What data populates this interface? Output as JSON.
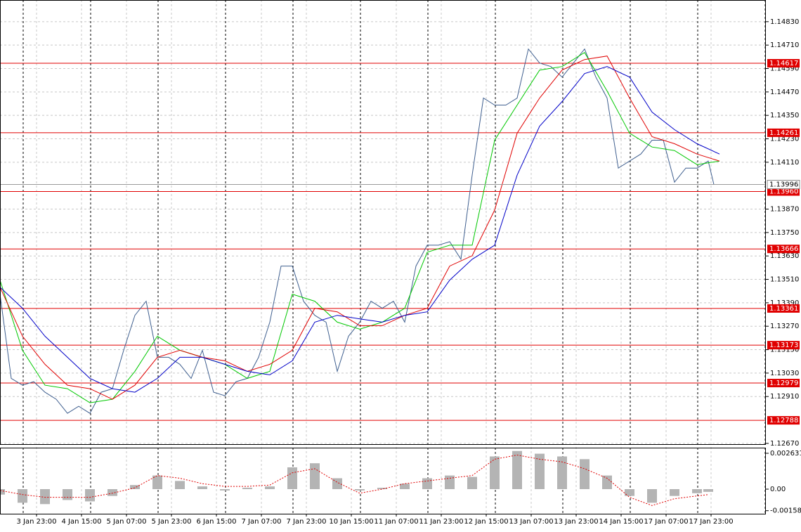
{
  "chart_data": [
    {
      "type": "line",
      "xlim": [
        0,
        272.5
      ],
      "ylim": [
        1.12666,
        1.14941
      ],
      "grid": true,
      "xticks": [
        {
          "value": 13,
          "label": "3 Jan 23:00"
        },
        {
          "value": 29,
          "label": "4 Jan 15:00"
        },
        {
          "value": 45,
          "label": "5 Jan 07:00"
        },
        {
          "value": 61,
          "label": "5 Jan 23:00"
        },
        {
          "value": 77,
          "label": "6 Jan 15:00"
        },
        {
          "value": 93,
          "label": "7 Jan 07:00"
        },
        {
          "value": 109,
          "label": "7 Jan 23:00"
        },
        {
          "value": 125,
          "label": "10 Jan 15:00"
        },
        {
          "value": 141,
          "label": "11 Jan 07:00"
        },
        {
          "value": 157,
          "label": "11 Jan 23:00"
        },
        {
          "value": 173,
          "label": "12 Jan 15:00"
        },
        {
          "value": 189,
          "label": "13 Jan 07:00"
        },
        {
          "value": 205,
          "label": "13 Jan 23:00"
        },
        {
          "value": 221,
          "label": "14 Jan 15:00"
        },
        {
          "value": 237,
          "label": "17 Jan 07:00"
        },
        {
          "value": 253,
          "label": "17 Jan 23:00"
        }
      ],
      "yticks": [
        {
          "value": 1.1483,
          "label": "1.14830"
        },
        {
          "value": 1.1471,
          "label": "1.14710"
        },
        {
          "value": 1.1459,
          "label": "1.14590"
        },
        {
          "value": 1.1447,
          "label": "1.14470"
        },
        {
          "value": 1.1435,
          "label": "1.14350"
        },
        {
          "value": 1.1423,
          "label": "1.14230"
        },
        {
          "value": 1.1411,
          "label": "1.14110"
        },
        {
          "value": 1.1387,
          "label": "1.13870"
        },
        {
          "value": 1.1375,
          "label": "1.13750"
        },
        {
          "value": 1.1363,
          "label": "1.13630"
        },
        {
          "value": 1.1351,
          "label": "1.13510"
        },
        {
          "value": 1.1339,
          "label": "1.13390"
        },
        {
          "value": 1.1327,
          "label": "1.13270"
        },
        {
          "value": 1.1315,
          "label": "1.13150"
        },
        {
          "value": 1.1303,
          "label": "1.13030"
        },
        {
          "value": 1.1291,
          "label": "1.12910"
        },
        {
          "value": 1.1267,
          "label": "1.12670"
        }
      ],
      "levels": [
        1.14617,
        1.14261,
        {
          "value": 1.1396,
          "label": "1.13960"
        },
        1.13666,
        1.13361,
        1.13173,
        1.12979,
        1.12788
      ],
      "level_color": "#e00000",
      "last_price": 1.13996,
      "series": [
        {
          "color": "#3f5f8f",
          "x": [
            0,
            4,
            8,
            12,
            16,
            20,
            24,
            28,
            32,
            36,
            40,
            44,
            48,
            52,
            56,
            60,
            64,
            68,
            72,
            76,
            80,
            84,
            88,
            92,
            96,
            100,
            104,
            108,
            112,
            116,
            120,
            124,
            128,
            132,
            136,
            140,
            144,
            148,
            152,
            156,
            160,
            164,
            168,
            172,
            176,
            180,
            184,
            188,
            192,
            196,
            200,
            204,
            208,
            212,
            216,
            220,
            224,
            228,
            232,
            236,
            240,
            244,
            248,
            252,
            254
          ],
          "values": [
            1.13434,
            1.13003,
            1.12968,
            1.12986,
            1.12932,
            1.12896,
            1.12824,
            1.1286,
            1.12824,
            1.12932,
            1.1295,
            1.13147,
            1.13326,
            1.13398,
            1.13111,
            1.13111,
            1.13075,
            1.13003,
            1.13147,
            1.12932,
            1.12914,
            1.12986,
            1.13003,
            1.13111,
            1.13291,
            1.13578,
            1.13578,
            1.13398,
            1.13326,
            1.13291,
            1.13039,
            1.13219,
            1.13291,
            1.13398,
            1.13362,
            1.13398,
            1.13291,
            1.13578,
            1.13685,
            1.13685,
            1.13703,
            1.13613,
            1.14044,
            1.14439,
            1.14403,
            1.14403,
            1.14439,
            1.1469,
            1.14618,
            1.146,
            1.14546,
            1.14618,
            1.1469,
            1.14546,
            1.14439,
            1.1408,
            1.14116,
            1.14152,
            1.14223,
            1.14223,
            1.14008,
            1.1408,
            1.1408,
            1.14116,
            1.13996
          ]
        },
        {
          "color": "#00c800",
          "x": [
            0,
            8,
            16,
            24,
            32,
            40,
            48,
            56,
            64,
            72,
            80,
            88,
            96,
            104,
            112,
            120,
            128,
            136,
            144,
            152,
            160,
            168,
            176,
            184,
            192,
            200,
            208,
            216,
            224,
            232,
            240,
            248,
            256
          ],
          "values": [
            1.13506,
            1.13147,
            1.12968,
            1.1295,
            1.12878,
            1.12896,
            1.13039,
            1.13219,
            1.13147,
            1.13111,
            1.13075,
            1.13003,
            1.13039,
            1.13434,
            1.13398,
            1.13291,
            1.13255,
            1.13291,
            1.13362,
            1.13649,
            1.13685,
            1.13685,
            1.14223,
            1.14403,
            1.14582,
            1.146,
            1.14672,
            1.14475,
            1.14259,
            1.14188,
            1.1417,
            1.14098,
            1.14116
          ]
        },
        {
          "color": "#e00000",
          "x": [
            0,
            8,
            16,
            24,
            32,
            40,
            48,
            56,
            64,
            72,
            80,
            88,
            96,
            104,
            112,
            120,
            128,
            136,
            144,
            152,
            160,
            168,
            176,
            184,
            192,
            200,
            208,
            216,
            224,
            232,
            240,
            248,
            256
          ],
          "values": [
            1.1347,
            1.13219,
            1.13075,
            1.12968,
            1.1295,
            1.12896,
            1.12968,
            1.13111,
            1.13147,
            1.13111,
            1.13093,
            1.13039,
            1.13075,
            1.13147,
            1.13362,
            1.13344,
            1.13273,
            1.13273,
            1.13326,
            1.13362,
            1.13578,
            1.13631,
            1.13865,
            1.14259,
            1.14439,
            1.14582,
            1.14636,
            1.14654,
            1.14439,
            1.14241,
            1.14205,
            1.14152,
            1.14116
          ]
        },
        {
          "color": "#0000c8",
          "x": [
            0,
            8,
            16,
            24,
            32,
            40,
            48,
            56,
            64,
            72,
            80,
            88,
            96,
            104,
            112,
            120,
            128,
            136,
            144,
            152,
            160,
            168,
            176,
            184,
            192,
            200,
            208,
            216,
            224,
            232,
            240,
            248,
            256
          ],
          "values": [
            1.1347,
            1.13362,
            1.13219,
            1.13111,
            1.13003,
            1.1295,
            1.12932,
            1.13003,
            1.13111,
            1.13111,
            1.13075,
            1.13039,
            1.13021,
            1.13093,
            1.13291,
            1.13326,
            1.13308,
            1.13291,
            1.13326,
            1.13344,
            1.13506,
            1.13613,
            1.13685,
            1.14044,
            1.14295,
            1.14421,
            1.14564,
            1.146,
            1.14546,
            1.14367,
            1.14277,
            1.14205,
            1.14152
          ]
        }
      ]
    },
    {
      "type": "bar",
      "xlim": [
        0,
        272.5
      ],
      "ylim": [
        -0.001806,
        0.003044
      ],
      "yticks": [
        0.002631,
        {
          "value": 0,
          "label": "0.00"
        },
        -0.001584
      ],
      "series": [
        {
          "style": "bar",
          "color": "#b4b4b4",
          "x": [
            0,
            8,
            16,
            24,
            32,
            40,
            48,
            56,
            64,
            72,
            80,
            88,
            96,
            104,
            112,
            120,
            128,
            136,
            144,
            152,
            160,
            168,
            176,
            184,
            192,
            200,
            208,
            216,
            224,
            232,
            240,
            248,
            252
          ],
          "values": [
            -0.0004,
            -0.001,
            -0.0011,
            -0.0008,
            -0.0009,
            -0.0005,
            0.0003,
            0.001,
            0.0006,
            0.0002,
            -0.0001,
            0.0001,
            0.0002,
            0.0016,
            0.0019,
            0.0008,
            -0.0001,
            0.0001,
            0.0004,
            0.0008,
            0.001,
            0.0009,
            0.0024,
            0.0028,
            0.0026,
            0.0024,
            0.0022,
            0.001,
            -0.0005,
            -0.001,
            -0.0005,
            -0.0003,
            -0.0002
          ]
        },
        {
          "style": "dotted",
          "color": "#e00000",
          "x": [
            0,
            8,
            16,
            24,
            32,
            40,
            48,
            56,
            64,
            72,
            80,
            88,
            96,
            104,
            112,
            120,
            128,
            136,
            144,
            152,
            160,
            168,
            176,
            184,
            192,
            200,
            208,
            216,
            224,
            232,
            240,
            248,
            252
          ],
          "values": [
            -0.0001,
            -0.0004,
            -0.0006,
            -0.0006,
            -0.0006,
            -0.0003,
            0.0001,
            0.001,
            0.0008,
            0.0004,
            0.0002,
            0.0002,
            0.0003,
            0.0012,
            0.0015,
            0.0005,
            -0.0003,
            0,
            0.0004,
            0.0006,
            0.0008,
            0.001,
            0.0022,
            0.0025,
            0.0022,
            0.002,
            0.0015,
            0.0008,
            -0.0006,
            -0.0012,
            -0.0007,
            -0.0005,
            -0.0004
          ]
        }
      ]
    }
  ]
}
